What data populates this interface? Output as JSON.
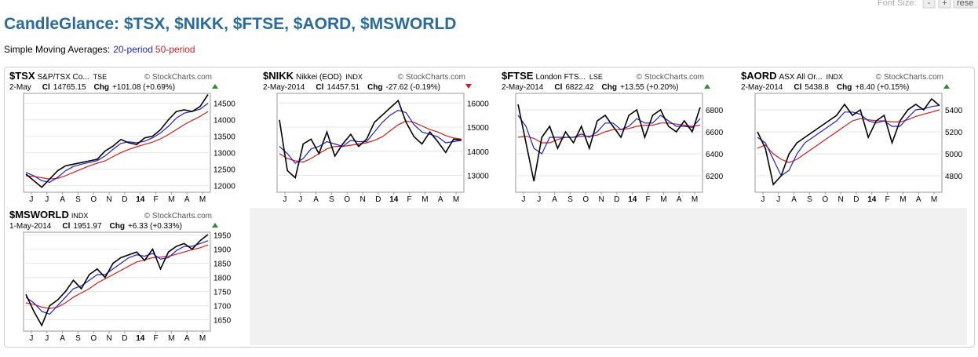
{
  "toolbar": {
    "label": "Font Size:",
    "buttons": [
      "-",
      "+",
      "rese"
    ]
  },
  "title": "CandleGlance: $TSX, $NIKK, $FTSE, $AORD, $MSWORLD",
  "subtitle": {
    "prefix": "Simple Moving Averages:",
    "ma20": "20-period",
    "ma50": "50-period"
  },
  "colors": {
    "price": "#000000",
    "ma20": "#1f1fcc",
    "ma50": "#cc1f1f",
    "up": "#2e8b2e",
    "down": "#cc1f1f"
  },
  "panels": [
    {
      "symbol": "$TSX",
      "name": "S&P/TSX Co...",
      "exchange": "TSE",
      "credit": "© StockCharts.com",
      "date": "2-May",
      "close_label": "Cl",
      "close": 14765.15,
      "chg_label": "Chg",
      "chg": "+101.08 (+0.69%)",
      "direction": "up",
      "ylim": [
        11800,
        14800
      ],
      "yticks": [
        12000,
        12500,
        13000,
        13500,
        14000,
        14500
      ],
      "months": [
        "J",
        "J",
        "A",
        "S",
        "O",
        "N",
        "D",
        "14",
        "F",
        "M",
        "A",
        "M"
      ],
      "price": [
        12350,
        12150,
        11950,
        12200,
        12450,
        12600,
        12650,
        12700,
        12750,
        12800,
        13050,
        13200,
        13400,
        13300,
        13250,
        13450,
        13500,
        13700,
        14000,
        14250,
        14300,
        14250,
        14400,
        14765
      ],
      "ma20": [
        12400,
        12300,
        12150,
        12100,
        12250,
        12450,
        12580,
        12650,
        12700,
        12760,
        12900,
        13100,
        13280,
        13330,
        13300,
        13350,
        13450,
        13600,
        13800,
        14050,
        14200,
        14250,
        14320,
        14500
      ],
      "ma50": [
        12300,
        12280,
        12240,
        12200,
        12220,
        12300,
        12400,
        12500,
        12600,
        12680,
        12750,
        12880,
        13000,
        13100,
        13180,
        13250,
        13320,
        13420,
        13550,
        13700,
        13850,
        13980,
        14100,
        14250
      ]
    },
    {
      "symbol": "$NIKK",
      "name": "Nikkei (EOD)",
      "exchange": "INDX",
      "credit": "© StockCharts.com",
      "date": "2-May-2014",
      "close_label": "Cl",
      "close": 14457.51,
      "chg_label": "Chg",
      "chg": "-27.62 (-0.19%)",
      "direction": "down",
      "ylim": [
        12300,
        16400
      ],
      "yticks": [
        13000,
        14000,
        15000,
        16000
      ],
      "months": [
        "J",
        "J",
        "A",
        "S",
        "O",
        "N",
        "D",
        "14",
        "F",
        "M",
        "A",
        "M"
      ],
      "price": [
        15300,
        13200,
        12900,
        14300,
        14500,
        13900,
        14800,
        13800,
        14300,
        14700,
        14200,
        14500,
        15200,
        15500,
        15800,
        16100,
        15200,
        14600,
        14300,
        14800,
        14400,
        13950,
        14500,
        14457.51
      ],
      "ma20": [
        14200,
        13900,
        13500,
        13700,
        14100,
        14200,
        14400,
        14300,
        14200,
        14450,
        14400,
        14400,
        14800,
        15200,
        15500,
        15700,
        15600,
        15100,
        14800,
        14700,
        14600,
        14350,
        14400,
        14450
      ],
      "ma50": [
        13900,
        13700,
        13600,
        13550,
        13700,
        13900,
        14100,
        14200,
        14200,
        14250,
        14300,
        14350,
        14450,
        14600,
        14850,
        15100,
        15250,
        15200,
        15050,
        14900,
        14800,
        14650,
        14550,
        14500
      ]
    },
    {
      "symbol": "$FTSE",
      "name": "London FTS...",
      "exchange": "LSE",
      "credit": "© StockCharts.com",
      "date": "2-May-2014",
      "close_label": "Cl",
      "close": 6822.42,
      "chg_label": "Chg",
      "chg": "+13.55 (+0.20%)",
      "direction": "up",
      "ylim": [
        6050,
        6950
      ],
      "yticks": [
        6200,
        6400,
        6600,
        6800
      ],
      "months": [
        "J",
        "J",
        "A",
        "S",
        "O",
        "N",
        "D",
        "14",
        "F",
        "M",
        "A",
        "M"
      ],
      "price": [
        6850,
        6500,
        6150,
        6550,
        6650,
        6450,
        6600,
        6500,
        6650,
        6450,
        6700,
        6750,
        6650,
        6550,
        6750,
        6800,
        6550,
        6750,
        6800,
        6650,
        6600,
        6700,
        6600,
        6822.42
      ],
      "ma20": [
        6750,
        6650,
        6450,
        6400,
        6550,
        6550,
        6550,
        6550,
        6580,
        6550,
        6600,
        6680,
        6680,
        6620,
        6650,
        6720,
        6680,
        6680,
        6750,
        6700,
        6650,
        6650,
        6640,
        6720
      ],
      "ma50": [
        6550,
        6560,
        6540,
        6500,
        6500,
        6530,
        6550,
        6550,
        6560,
        6560,
        6570,
        6600,
        6620,
        6620,
        6630,
        6650,
        6660,
        6660,
        6680,
        6680,
        6670,
        6660,
        6650,
        6660
      ]
    },
    {
      "symbol": "$AORD",
      "name": "ASX All Or...",
      "exchange": "INDX",
      "credit": "© StockCharts.com",
      "date": "2-May-2014",
      "close_label": "Cl",
      "close": 5438.8,
      "chg_label": "Chg",
      "chg": "+8.40 (+0.15%)",
      "direction": "up",
      "ylim": [
        4650,
        5550
      ],
      "yticks": [
        4800,
        5000,
        5200,
        5400
      ],
      "months": [
        "J",
        "J",
        "A",
        "S",
        "O",
        "N",
        "D",
        "14",
        "F",
        "M",
        "A",
        "M"
      ],
      "price": [
        5200,
        5050,
        4720,
        4800,
        5000,
        5100,
        5150,
        5200,
        5250,
        5300,
        5350,
        5450,
        5350,
        5400,
        5150,
        5300,
        5350,
        5100,
        5300,
        5400,
        5450,
        5400,
        5500,
        5438.8
      ],
      "ma20": [
        5150,
        5100,
        4950,
        4800,
        4850,
        5000,
        5100,
        5150,
        5200,
        5250,
        5300,
        5380,
        5380,
        5360,
        5300,
        5280,
        5300,
        5250,
        5250,
        5330,
        5400,
        5410,
        5430,
        5440
      ],
      "ma50": [
        5050,
        5080,
        5000,
        4950,
        4920,
        4950,
        5000,
        5050,
        5100,
        5150,
        5200,
        5250,
        5300,
        5320,
        5310,
        5300,
        5300,
        5290,
        5290,
        5310,
        5340,
        5360,
        5380,
        5400
      ]
    },
    {
      "symbol": "$MSWORLD",
      "exchange": "INDX",
      "credit": "© StockCharts.com",
      "date": "1-May-2014",
      "close_label": "Cl",
      "close": 1951.97,
      "chg_label": "Chg",
      "chg": "+6.33 (+0.33%)",
      "direction": "up",
      "ylim": [
        1610,
        1960
      ],
      "yticks": [
        1650,
        1700,
        1750,
        1800,
        1850,
        1900,
        1950
      ],
      "months": [
        "J",
        "J",
        "A",
        "S",
        "O",
        "N",
        "D",
        "14",
        "F",
        "M",
        "A",
        "M"
      ],
      "price": [
        1740,
        1680,
        1630,
        1700,
        1720,
        1750,
        1790,
        1760,
        1810,
        1830,
        1800,
        1850,
        1870,
        1880,
        1890,
        1860,
        1900,
        1830,
        1890,
        1910,
        1920,
        1900,
        1930,
        1951.97
      ],
      "ma20": [
        1730,
        1710,
        1680,
        1670,
        1700,
        1730,
        1760,
        1770,
        1790,
        1810,
        1810,
        1830,
        1850,
        1870,
        1880,
        1875,
        1885,
        1865,
        1870,
        1895,
        1910,
        1910,
        1920,
        1930
      ],
      "ma50": [
        1710,
        1705,
        1695,
        1690,
        1695,
        1710,
        1730,
        1745,
        1760,
        1780,
        1795,
        1810,
        1825,
        1840,
        1855,
        1862,
        1870,
        1872,
        1875,
        1882,
        1890,
        1898,
        1905,
        1915
      ]
    }
  ]
}
